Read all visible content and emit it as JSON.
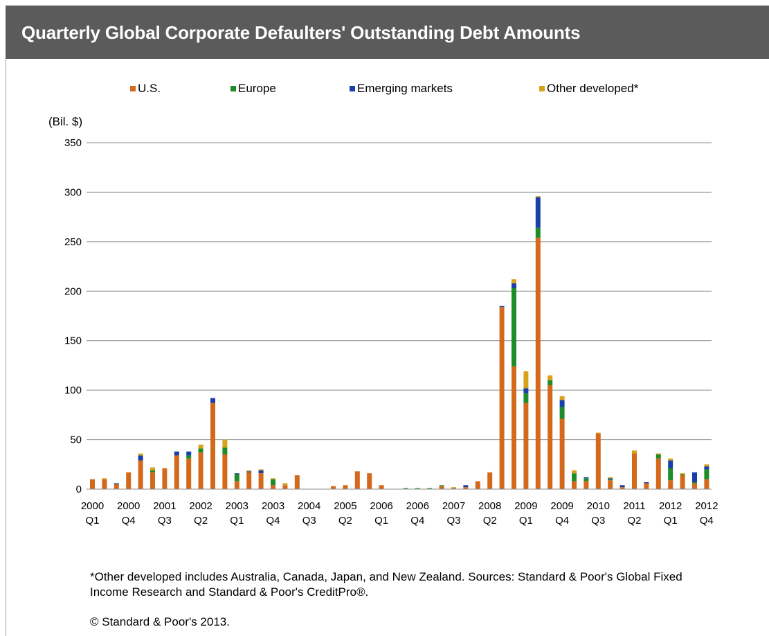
{
  "title": "Quarterly Global Corporate Defaulters' Outstanding Debt Amounts",
  "legend": [
    {
      "label": "U.S.",
      "color": "#d4691c"
    },
    {
      "label": "Europe",
      "color": "#1e8c28"
    },
    {
      "label": "Emerging markets",
      "color": "#1a3fa8"
    },
    {
      "label": "Other developed*",
      "color": "#d9a21b"
    }
  ],
  "footnote": "*Other developed includes Australia, Canada, Japan, and New Zealand. Sources: Standard & Poor's Global Fixed Income Research and Standard & Poor's CreditPro®.",
  "copyright": "© Standard & Poor's 2013.",
  "chart_data": {
    "type": "bar",
    "stacked": true,
    "ylabel": "(Bil. $)",
    "ylim": [
      0,
      350
    ],
    "yticks": [
      0,
      50,
      100,
      150,
      200,
      250,
      300,
      350
    ],
    "grid": true,
    "legend_position": "top",
    "categories": [
      "2000 Q1",
      "2000 Q2",
      "2000 Q3",
      "2000 Q4",
      "2001 Q1",
      "2001 Q2",
      "2001 Q3",
      "2001 Q4",
      "2002 Q1",
      "2002 Q2",
      "2002 Q3",
      "2002 Q4",
      "2003 Q1",
      "2003 Q2",
      "2003 Q3",
      "2003 Q4",
      "2004 Q1",
      "2004 Q2",
      "2004 Q3",
      "2004 Q4",
      "2005 Q1",
      "2005 Q2",
      "2005 Q3",
      "2005 Q4",
      "2006 Q1",
      "2006 Q2",
      "2006 Q3",
      "2006 Q4",
      "2007 Q1",
      "2007 Q2",
      "2007 Q3",
      "2007 Q4",
      "2008 Q1",
      "2008 Q2",
      "2008 Q3",
      "2008 Q4",
      "2009 Q1",
      "2009 Q2",
      "2009 Q3",
      "2009 Q4",
      "2010 Q1",
      "2010 Q2",
      "2010 Q3",
      "2010 Q4",
      "2011 Q1",
      "2011 Q2",
      "2011 Q3",
      "2011 Q4",
      "2012 Q1",
      "2012 Q2",
      "2012 Q3",
      "2012 Q4"
    ],
    "x_tick_labels": [
      {
        "year": "2000",
        "q": "Q1",
        "index": 0
      },
      {
        "year": "2000",
        "q": "Q4",
        "index": 3
      },
      {
        "year": "2001",
        "q": "Q3",
        "index": 6
      },
      {
        "year": "2002",
        "q": "Q2",
        "index": 9
      },
      {
        "year": "2003",
        "q": "Q1",
        "index": 12
      },
      {
        "year": "2003",
        "q": "Q4",
        "index": 15
      },
      {
        "year": "2004",
        "q": "Q3",
        "index": 18
      },
      {
        "year": "2005",
        "q": "Q2",
        "index": 21
      },
      {
        "year": "2006",
        "q": "Q1",
        "index": 24
      },
      {
        "year": "2006",
        "q": "Q4",
        "index": 27
      },
      {
        "year": "2007",
        "q": "Q3",
        "index": 30
      },
      {
        "year": "2008",
        "q": "Q2",
        "index": 33
      },
      {
        "year": "2009",
        "q": "Q1",
        "index": 36
      },
      {
        "year": "2009",
        "q": "Q4",
        "index": 39
      },
      {
        "year": "2010",
        "q": "Q3",
        "index": 42
      },
      {
        "year": "2011",
        "q": "Q2",
        "index": 45
      },
      {
        "year": "2012",
        "q": "Q1",
        "index": 48
      },
      {
        "year": "2012",
        "q": "Q4",
        "index": 51
      }
    ],
    "series": [
      {
        "name": "U.S.",
        "color": "#d4691c",
        "values": [
          10,
          10,
          5,
          17,
          29,
          17,
          21,
          34,
          31,
          37,
          87,
          35,
          8,
          17,
          16,
          4,
          4,
          14,
          0,
          0,
          3,
          4,
          18,
          16,
          4,
          0,
          0,
          0,
          0,
          3,
          1,
          2,
          8,
          17,
          184,
          124,
          87,
          254,
          105,
          71,
          8,
          8,
          56,
          9,
          2,
          36,
          6,
          31,
          9,
          14,
          6,
          10
        ]
      },
      {
        "name": "Europe",
        "color": "#1e8c28",
        "values": [
          0,
          0,
          0,
          0,
          0,
          2,
          0,
          0,
          3,
          4,
          0,
          7,
          7,
          0,
          0,
          6,
          0,
          0,
          0,
          0,
          0,
          0,
          0,
          0,
          0,
          0,
          1,
          1,
          1,
          1,
          0,
          0,
          0,
          0,
          0,
          79,
          10,
          10,
          5,
          12,
          8,
          3,
          0,
          1,
          0,
          0,
          0,
          4,
          12,
          1,
          1,
          10
        ]
      },
      {
        "name": "Emerging markets",
        "color": "#1a3fa8",
        "values": [
          0,
          0,
          1,
          0,
          5,
          0,
          0,
          4,
          4,
          0,
          5,
          0,
          1,
          1,
          3,
          0,
          0,
          0,
          0,
          0,
          0,
          0,
          0,
          0,
          0,
          0,
          0,
          0,
          0,
          0,
          0,
          2,
          0,
          0,
          1,
          5,
          5,
          31,
          0,
          7,
          0,
          1,
          0,
          1,
          2,
          0,
          1,
          0,
          8,
          0,
          10,
          3
        ]
      },
      {
        "name": "Other developed*",
        "color": "#d9a21b",
        "values": [
          0,
          1,
          0,
          0,
          2,
          3,
          0,
          0,
          0,
          4,
          0,
          8,
          0,
          1,
          1,
          1,
          2,
          0,
          0,
          0,
          0,
          0,
          0,
          0,
          0,
          0,
          0,
          0,
          0,
          0,
          1,
          0,
          0,
          0,
          0,
          4,
          17,
          1,
          5,
          4,
          3,
          0,
          1,
          1,
          0,
          3,
          0,
          1,
          2,
          1,
          0,
          2
        ]
      }
    ]
  }
}
